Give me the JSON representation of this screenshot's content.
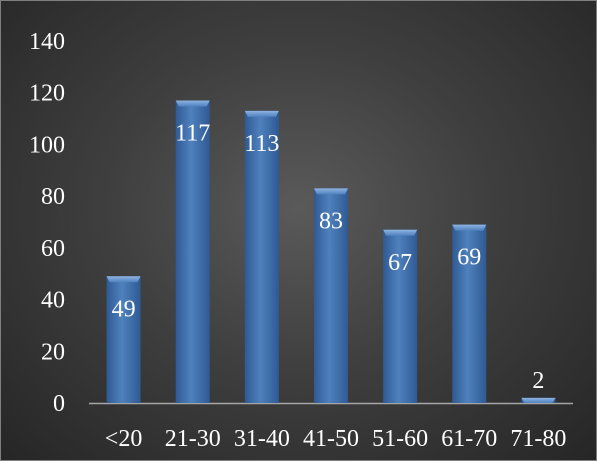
{
  "chart_data": {
    "type": "bar",
    "title": "",
    "xlabel": "",
    "ylabel": "",
    "categories": [
      "<20",
      "21-30",
      "31-40",
      "41-50",
      "51-60",
      "61-70",
      "71-80"
    ],
    "values": [
      49,
      117,
      113,
      83,
      67,
      69,
      2
    ],
    "ylim": [
      0,
      140
    ],
    "yticks": [
      0,
      20,
      40,
      60,
      80,
      100,
      120,
      140
    ],
    "grid": false,
    "legend": "none",
    "data_labels": true,
    "bar_color": "#4f81bd",
    "bar_color_light": "#8eb4e3",
    "bar_color_dark": "#2f5a94",
    "background_color": "#404040",
    "text_color": "#ffffff"
  }
}
